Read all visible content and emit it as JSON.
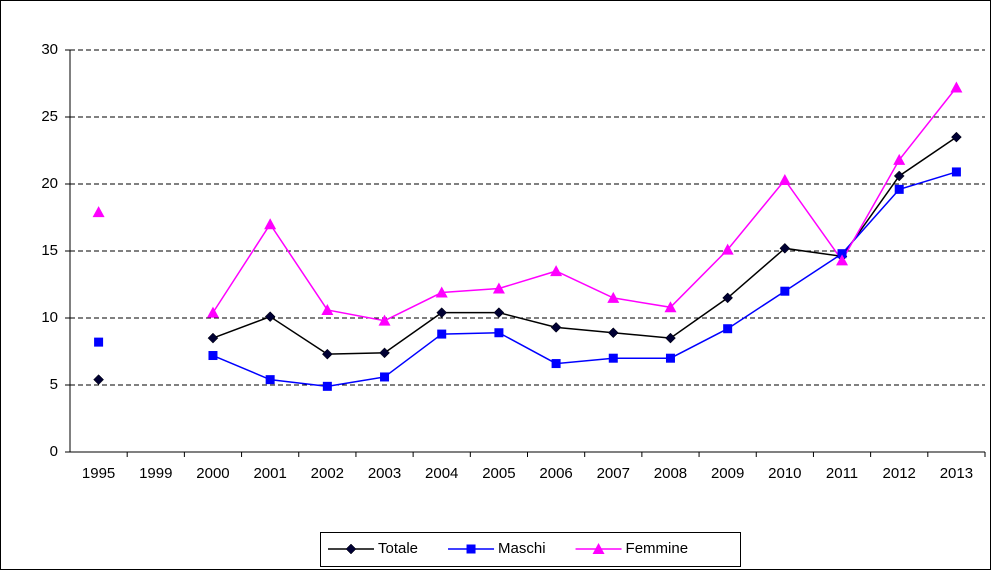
{
  "chart_data": {
    "type": "line",
    "categories": [
      "1995",
      "1999",
      "2000",
      "2001",
      "2002",
      "2003",
      "2004",
      "2005",
      "2006",
      "2007",
      "2008",
      "2009",
      "2010",
      "2011",
      "2012",
      "2013"
    ],
    "series": [
      {
        "name": "Totale",
        "color": "#000000",
        "marker": "diamond",
        "marker_color": "#000033",
        "values": [
          5.4,
          null,
          8.5,
          10.1,
          7.3,
          7.4,
          10.4,
          10.4,
          9.3,
          8.9,
          8.5,
          11.5,
          15.2,
          14.6,
          20.6,
          23.5
        ]
      },
      {
        "name": "Maschi",
        "color": "#0000ff",
        "marker": "square",
        "marker_color": "#0000ff",
        "values": [
          8.2,
          null,
          7.2,
          5.4,
          4.9,
          5.6,
          8.8,
          8.9,
          6.6,
          7.0,
          7.0,
          9.2,
          12.0,
          14.8,
          19.6,
          20.9
        ]
      },
      {
        "name": "Femmine",
        "color": "#ff00ff",
        "marker": "triangle",
        "marker_color": "#ff00ff",
        "values": [
          17.9,
          null,
          10.4,
          17.0,
          10.6,
          9.8,
          11.9,
          12.2,
          13.5,
          11.5,
          10.8,
          15.1,
          20.3,
          14.3,
          21.8,
          27.2
        ]
      }
    ],
    "ylim": [
      0,
      30
    ],
    "yticks": [
      0,
      5,
      10,
      15,
      20,
      25,
      30
    ],
    "grid": true,
    "legend": "bottom"
  }
}
